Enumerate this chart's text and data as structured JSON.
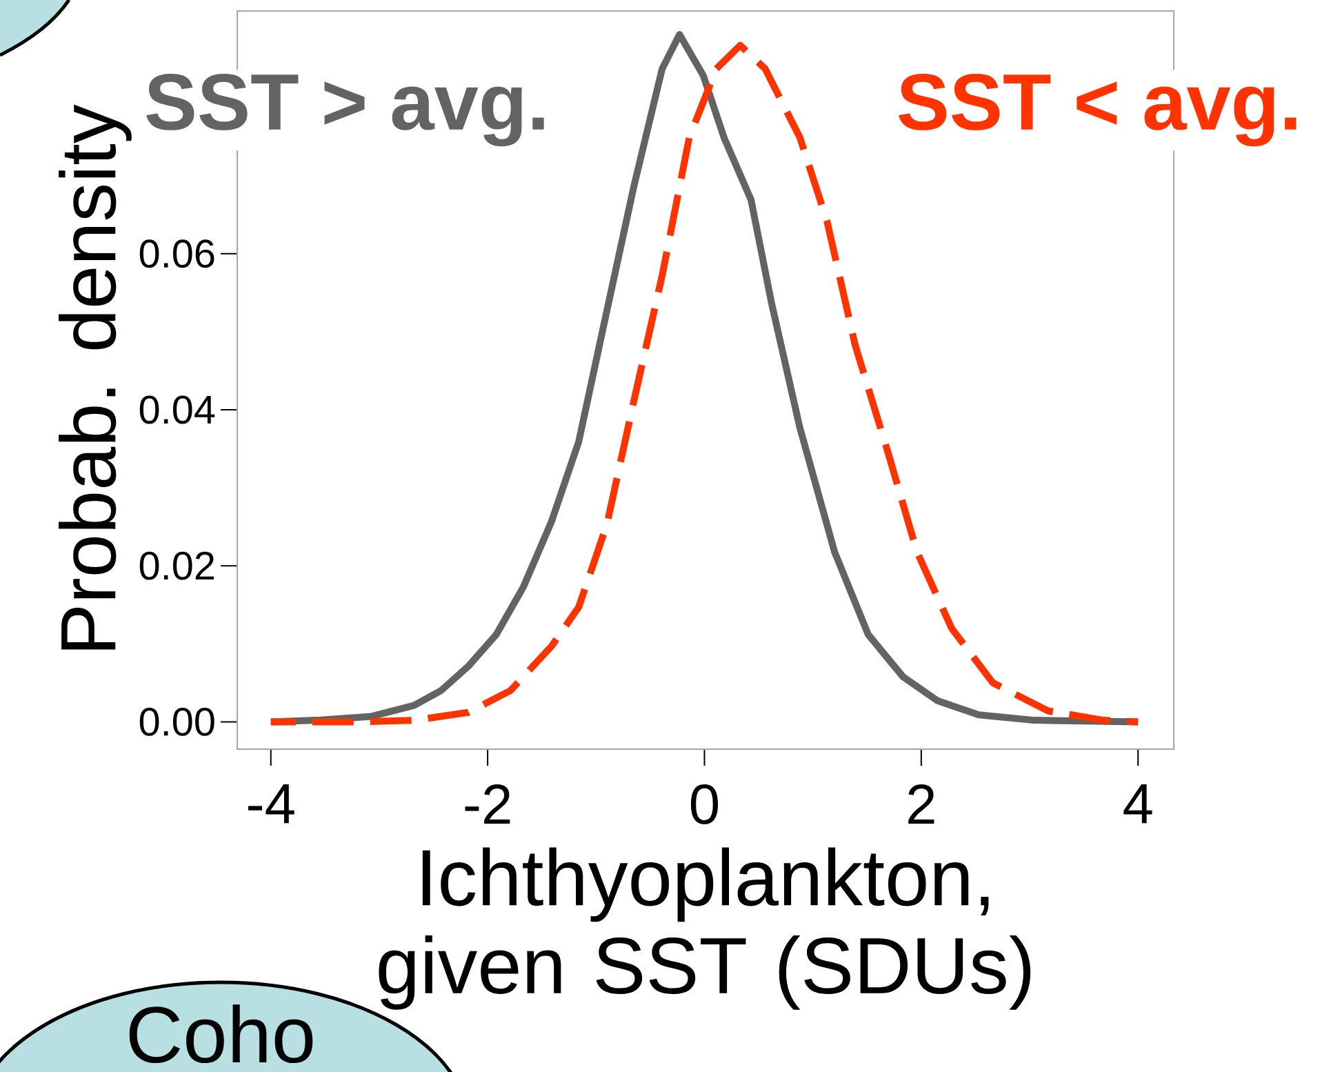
{
  "chart_data": {
    "type": "line",
    "xlabel": "Ichthyoplankton, given SST (SDUs)",
    "ylabel": "Probab. density",
    "xlim": [
      -4.31,
      4.33
    ],
    "ylim": [
      -0.0035,
      0.0911
    ],
    "xticks": [
      -4,
      -2,
      0,
      2,
      4
    ],
    "yticks": [
      {
        "value": 0,
        "label": "0.00"
      },
      {
        "value": 0.02,
        "label": "0.02"
      },
      {
        "value": 0.04,
        "label": "0.04"
      },
      {
        "value": 0.06,
        "label": "0.06"
      }
    ],
    "grid": false,
    "marker": "none",
    "series": [
      {
        "name": "SST > avg.",
        "color": "#636363",
        "line_style": "solid",
        "x": [
          -4,
          -3.58,
          -3.07,
          -2.68,
          -2.43,
          -2.18,
          -1.92,
          -1.67,
          -1.41,
          -1.16,
          -0.9,
          -0.65,
          -0.39,
          -0.23,
          -0.01,
          0.18,
          0.43,
          0.62,
          0.88,
          1.2,
          1.51,
          1.83,
          2.15,
          2.53,
          3.04,
          4
        ],
        "values": [
          0,
          0.0002,
          0.0007,
          0.0021,
          0.004,
          0.0071,
          0.0112,
          0.0173,
          0.0257,
          0.0359,
          0.0527,
          0.0687,
          0.0837,
          0.0881,
          0.0828,
          0.0749,
          0.0669,
          0.0536,
          0.0377,
          0.0218,
          0.0112,
          0.0058,
          0.0027,
          0.0009,
          0.0002,
          0
        ]
      },
      {
        "name": "SST < avg.",
        "color": "#ff3300",
        "line_style": "dashed",
        "x": [
          -4,
          -3.2,
          -2.68,
          -2.18,
          -1.79,
          -1.41,
          -1.16,
          -0.9,
          -0.65,
          -0.39,
          -0.14,
          0.11,
          0.33,
          0.56,
          0.88,
          1.13,
          1.39,
          1.7,
          1.96,
          2.28,
          2.66,
          3.17,
          3.68,
          4
        ],
        "values": [
          0,
          0,
          0.0002,
          0.0012,
          0.004,
          0.0097,
          0.0147,
          0.0253,
          0.0412,
          0.0572,
          0.0749,
          0.0837,
          0.0867,
          0.0837,
          0.0749,
          0.0642,
          0.0483,
          0.0342,
          0.0218,
          0.012,
          0.005,
          0.0014,
          0.0002,
          0
        ]
      }
    ],
    "annotations": [
      "Coho"
    ]
  }
}
